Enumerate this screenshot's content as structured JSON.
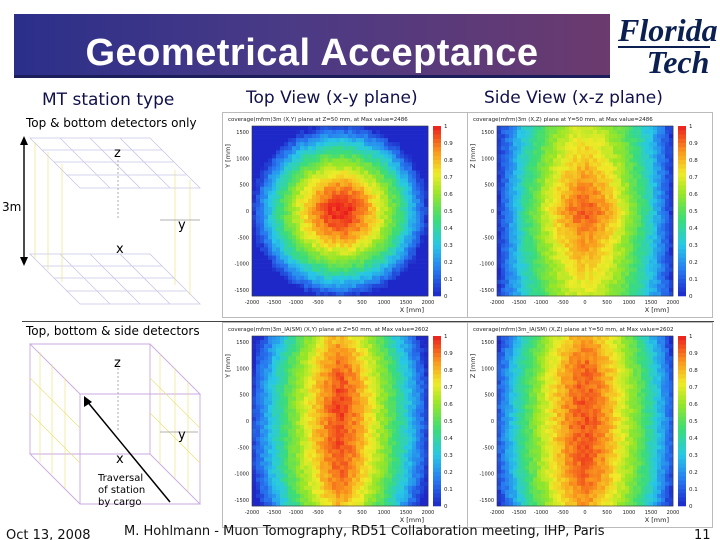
{
  "slide": {
    "title": "Geometrical Acceptance",
    "logo_line1": "Florida",
    "logo_line2": "Tech",
    "col_station": "MT station type",
    "col_top": "Top View (x-y plane)",
    "col_side": "Side View (x-z plane)",
    "row1_label": "Top & bottom detectors only",
    "row2_label": "Top, bottom & side detectors",
    "footer_date": "Oct 13, 2008",
    "footer_center": "M. Hohlmann - Muon Tomography, RD51 Collaboration meeting, IHP, Paris",
    "footer_page": "11"
  },
  "diagram1": {
    "axis_z": "z",
    "axis_y": "y",
    "axis_x": "x",
    "height": "3m"
  },
  "diagram2": {
    "axis_z": "z",
    "axis_y": "y",
    "axis_x": "x",
    "note1": "Traversal",
    "note2": "of station",
    "note3": "by cargo"
  },
  "plots": [
    {
      "title": "coverage(mfrm)3m (X,Y) plane at Z=50 mm, at Max value=2486",
      "xlabel": "X [mm]",
      "ylabel": "Y [mm]",
      "pattern": "center"
    },
    {
      "title": "coverage(mfrm)3m (X,Z) plane at Y=50 mm, at Max value=2486",
      "xlabel": "X [mm]",
      "ylabel": "Z [mm]",
      "pattern": "center-vertical"
    },
    {
      "title": "coverage(mfrm)3m_IA(SM) (X,Y) plane at Z=50 mm, at Max value=2602",
      "xlabel": "X [mm]",
      "ylabel": "Y [mm]",
      "pattern": "band"
    },
    {
      "title": "coverage(mfrm)3m_IA(SM) (X,Z) plane at Y=50 mm, at Max value=2602",
      "xlabel": "X [mm]",
      "ylabel": "Z [mm]",
      "pattern": "band-wide"
    }
  ],
  "chart_data": {
    "type": "heatmap",
    "x_ticks": [
      "-2000",
      "-1500",
      "-1000",
      "-500",
      "0",
      "500",
      "1000",
      "1500",
      "2000"
    ],
    "y_ticks": [
      "1500",
      "1000",
      "500",
      "0",
      "-500",
      "-1000",
      "-1500"
    ],
    "colorbar_ticks": [
      "1",
      "0.9",
      "0.8",
      "0.7",
      "0.6",
      "0.5",
      "0.4",
      "0.3",
      "0.2",
      "0.1",
      "0"
    ]
  }
}
